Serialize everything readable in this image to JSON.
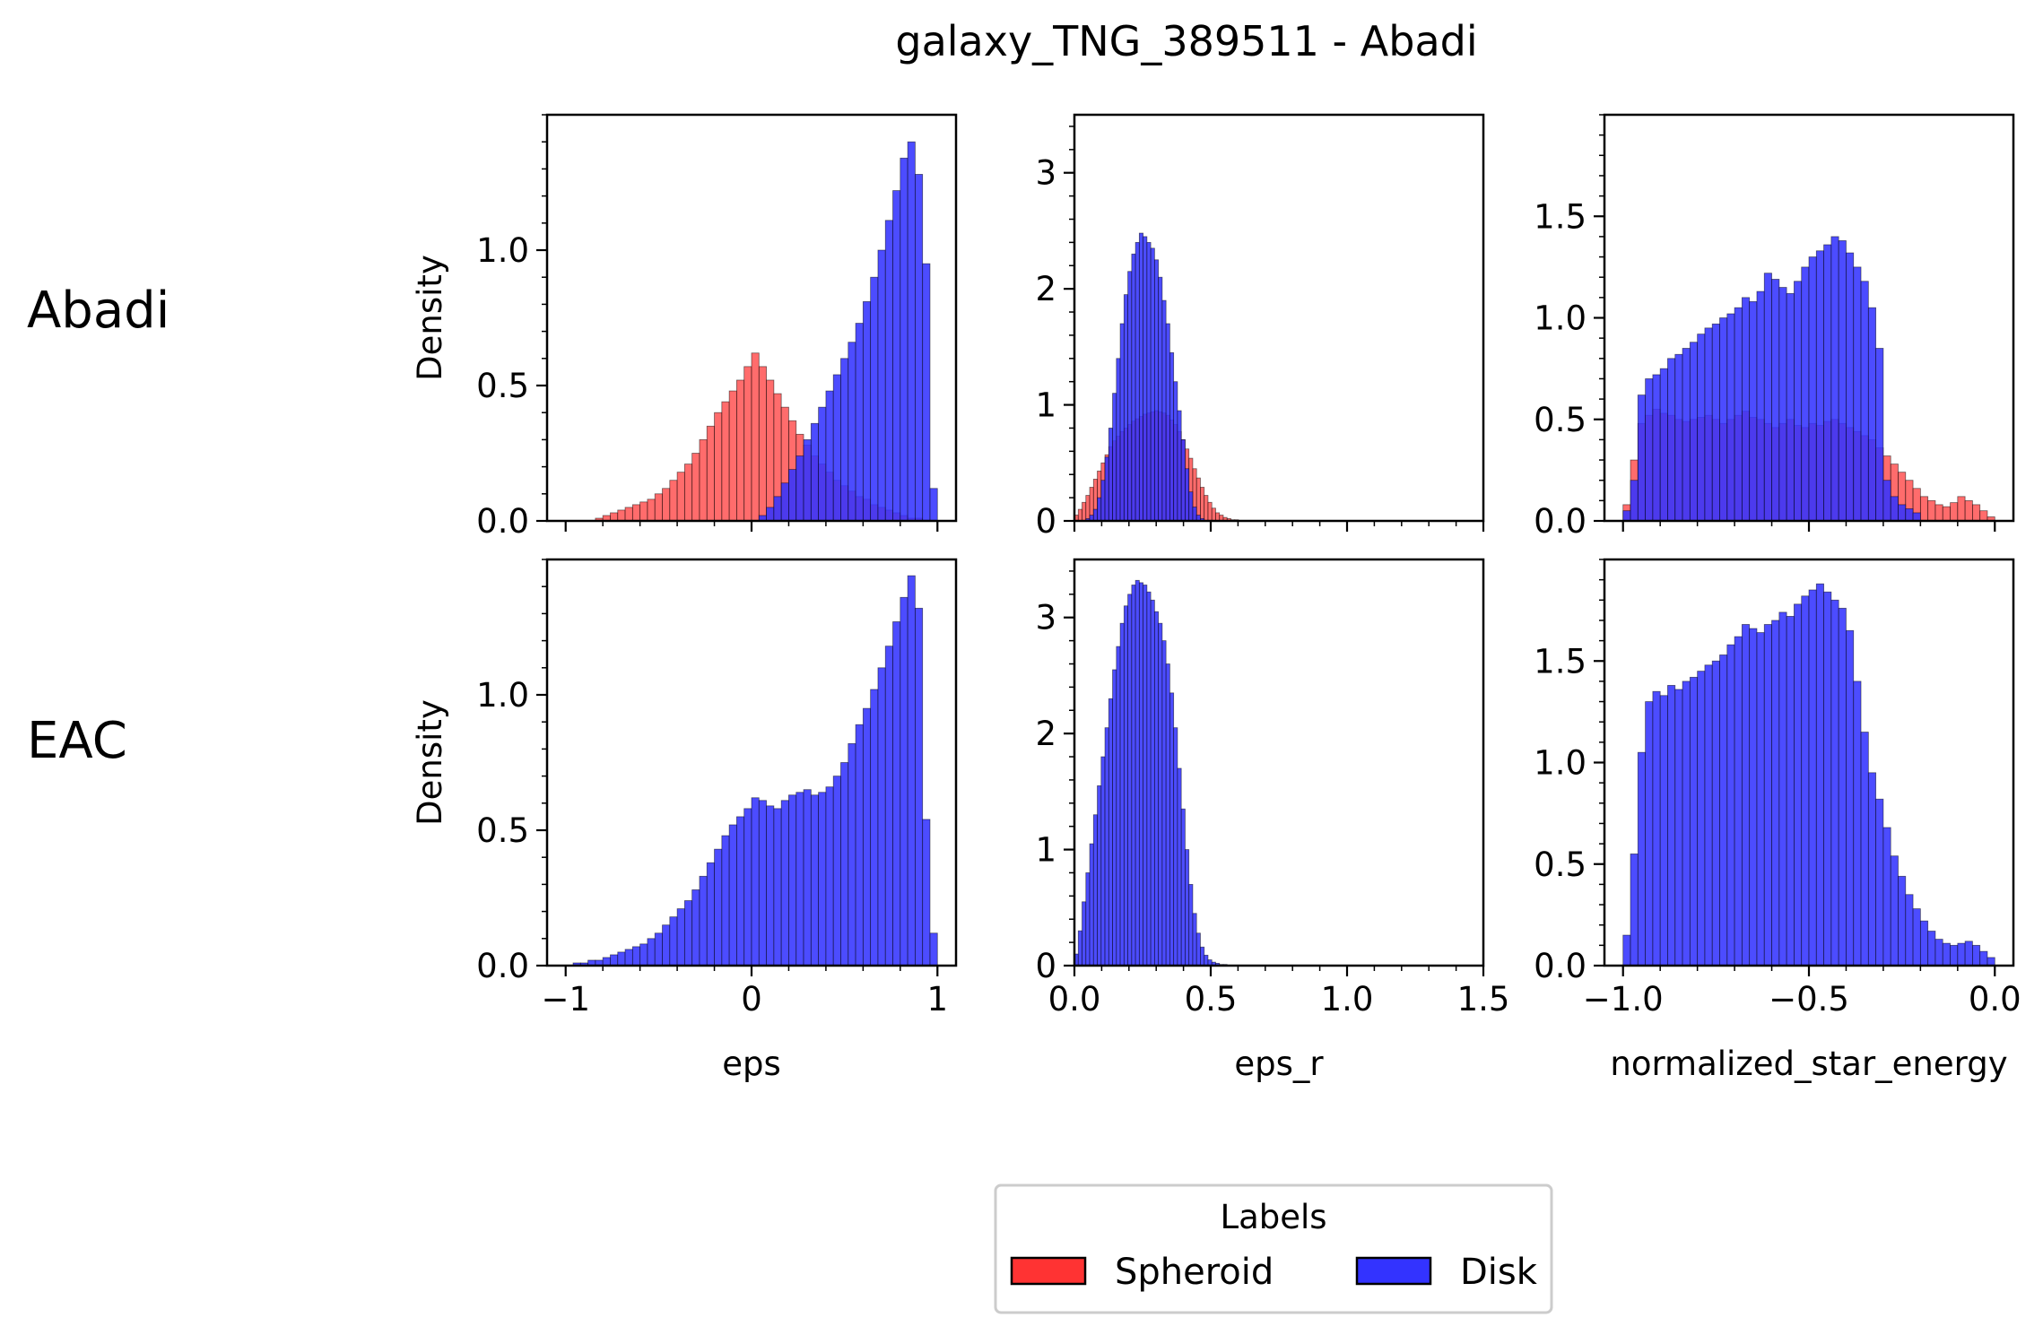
{
  "figure": {
    "title": "galaxy_TNG_389511 - Abadi",
    "row_labels": [
      "Abadi",
      "EAC"
    ],
    "legend": {
      "title": "Labels",
      "entries": [
        {
          "label": "Spheroid",
          "color": "#ff3333"
        },
        {
          "label": "Disk",
          "color": "#3333ff"
        }
      ],
      "placement": "bottom-center"
    }
  },
  "colors": {
    "spheroid": "#ff3333",
    "disk": "#3333ff",
    "overlap": "#a3102c",
    "axis": "#000000"
  },
  "chart_data": [
    {
      "id": "abadi-eps",
      "type": "bar",
      "row": 0,
      "col": 0,
      "xlabel": "",
      "ylabel": "Density",
      "xlim": [
        -1.1,
        1.1
      ],
      "ylim": [
        0,
        1.5
      ],
      "grid": false,
      "xticks": [
        -1,
        0,
        1
      ],
      "xtick_labels": [],
      "yticks": [
        0,
        0.5,
        1.0
      ],
      "ytick_labels": [
        "0.0",
        "0.5",
        "1.0"
      ],
      "bin_range": [
        -1.0,
        1.0
      ],
      "bins": 50,
      "series": [
        {
          "name": "Spheroid",
          "color": "#ff3333",
          "values": [
            0.0,
            0.0,
            0.0,
            0.0,
            0.01,
            0.02,
            0.03,
            0.04,
            0.05,
            0.06,
            0.07,
            0.08,
            0.1,
            0.12,
            0.15,
            0.18,
            0.21,
            0.25,
            0.3,
            0.35,
            0.4,
            0.44,
            0.48,
            0.52,
            0.57,
            0.62,
            0.57,
            0.52,
            0.47,
            0.42,
            0.37,
            0.32,
            0.28,
            0.24,
            0.21,
            0.18,
            0.15,
            0.13,
            0.11,
            0.09,
            0.08,
            0.06,
            0.05,
            0.04,
            0.03,
            0.02,
            0.01,
            0.01,
            0.0,
            0.0
          ]
        },
        {
          "name": "Disk",
          "color": "#3333ff",
          "values": [
            0.0,
            0.0,
            0.0,
            0.0,
            0.0,
            0.0,
            0.0,
            0.0,
            0.0,
            0.0,
            0.0,
            0.0,
            0.0,
            0.0,
            0.0,
            0.0,
            0.0,
            0.0,
            0.0,
            0.0,
            0.0,
            0.0,
            0.0,
            0.0,
            0.0,
            0.0,
            0.02,
            0.05,
            0.09,
            0.14,
            0.19,
            0.24,
            0.3,
            0.36,
            0.42,
            0.48,
            0.54,
            0.6,
            0.66,
            0.73,
            0.81,
            0.9,
            1.0,
            1.11,
            1.22,
            1.34,
            1.4,
            1.28,
            0.95,
            0.12
          ]
        }
      ]
    },
    {
      "id": "abadi-eps-r",
      "type": "bar",
      "row": 0,
      "col": 1,
      "xlabel": "",
      "ylabel": "",
      "xlim": [
        0,
        1.5
      ],
      "ylim": [
        0,
        3.5
      ],
      "grid": false,
      "xticks": [
        0,
        0.5,
        1.0,
        1.5
      ],
      "xtick_labels": [],
      "yticks": [
        0,
        1,
        2,
        3
      ],
      "ytick_labels": [
        "0",
        "1",
        "2",
        "3"
      ],
      "bin_range": [
        0,
        0.7
      ],
      "bins": 50,
      "series": [
        {
          "name": "Spheroid",
          "color": "#ff3333",
          "values": [
            0.05,
            0.1,
            0.16,
            0.22,
            0.29,
            0.36,
            0.43,
            0.5,
            0.57,
            0.64,
            0.69,
            0.73,
            0.77,
            0.8,
            0.83,
            0.86,
            0.88,
            0.9,
            0.92,
            0.93,
            0.94,
            0.95,
            0.94,
            0.93,
            0.91,
            0.87,
            0.83,
            0.77,
            0.7,
            0.62,
            0.54,
            0.45,
            0.37,
            0.29,
            0.22,
            0.16,
            0.11,
            0.07,
            0.05,
            0.03,
            0.02,
            0.01,
            0.01,
            0.0,
            0.0,
            0.0,
            0.0,
            0.0,
            0.0,
            0.0
          ]
        },
        {
          "name": "Disk",
          "color": "#3333ff",
          "values": [
            0.0,
            0.0,
            0.0,
            0.02,
            0.05,
            0.1,
            0.2,
            0.35,
            0.55,
            0.8,
            1.1,
            1.4,
            1.7,
            1.95,
            2.15,
            2.3,
            2.4,
            2.48,
            2.45,
            2.4,
            2.35,
            2.25,
            2.1,
            1.9,
            1.7,
            1.45,
            1.2,
            0.95,
            0.7,
            0.45,
            0.25,
            0.12,
            0.05,
            0.02,
            0.0,
            0.0,
            0.0,
            0.0,
            0.0,
            0.0,
            0.0,
            0.0,
            0.0,
            0.0,
            0.0,
            0.0,
            0.0,
            0.0,
            0.0,
            0.0
          ]
        }
      ]
    },
    {
      "id": "abadi-energy",
      "type": "bar",
      "row": 0,
      "col": 2,
      "xlabel": "",
      "ylabel": "",
      "xlim": [
        -1.05,
        0.05
      ],
      "ylim": [
        0,
        2.0
      ],
      "grid": false,
      "xticks": [
        -1.0,
        -0.5,
        0.0
      ],
      "xtick_labels": [],
      "yticks": [
        0,
        0.5,
        1.0,
        1.5
      ],
      "ytick_labels": [
        "0.0",
        "0.5",
        "1.0",
        "1.5"
      ],
      "bin_range": [
        -1.0,
        0.0
      ],
      "bins": 50,
      "series": [
        {
          "name": "Spheroid",
          "color": "#ff3333",
          "values": [
            0.08,
            0.3,
            0.48,
            0.52,
            0.55,
            0.53,
            0.52,
            0.5,
            0.49,
            0.5,
            0.51,
            0.52,
            0.5,
            0.48,
            0.5,
            0.52,
            0.54,
            0.51,
            0.5,
            0.48,
            0.46,
            0.48,
            0.5,
            0.47,
            0.46,
            0.48,
            0.47,
            0.49,
            0.5,
            0.48,
            0.46,
            0.44,
            0.42,
            0.4,
            0.36,
            0.32,
            0.28,
            0.24,
            0.2,
            0.16,
            0.12,
            0.1,
            0.08,
            0.07,
            0.09,
            0.12,
            0.1,
            0.08,
            0.05,
            0.02
          ]
        },
        {
          "name": "Disk",
          "color": "#3333ff",
          "values": [
            0.05,
            0.2,
            0.62,
            0.7,
            0.72,
            0.75,
            0.8,
            0.82,
            0.85,
            0.88,
            0.92,
            0.95,
            0.97,
            1.0,
            1.02,
            1.05,
            1.1,
            1.08,
            1.13,
            1.22,
            1.19,
            1.15,
            1.12,
            1.18,
            1.25,
            1.3,
            1.33,
            1.36,
            1.4,
            1.38,
            1.32,
            1.25,
            1.18,
            1.05,
            0.85,
            0.2,
            0.12,
            0.08,
            0.06,
            0.04,
            0.0,
            0.0,
            0.0,
            0.0,
            0.0,
            0.0,
            0.0,
            0.0,
            0.0,
            0.0
          ]
        }
      ]
    },
    {
      "id": "eac-eps",
      "type": "bar",
      "row": 1,
      "col": 0,
      "xlabel": "eps",
      "ylabel": "Density",
      "xlim": [
        -1.1,
        1.1
      ],
      "ylim": [
        0,
        1.5
      ],
      "grid": false,
      "xticks": [
        -1,
        0,
        1
      ],
      "xtick_labels": [
        "−1",
        "0",
        "1"
      ],
      "yticks": [
        0,
        0.5,
        1.0
      ],
      "ytick_labels": [
        "0.0",
        "0.5",
        "1.0"
      ],
      "bin_range": [
        -1.0,
        1.0
      ],
      "bins": 50,
      "series": [
        {
          "name": "Disk",
          "color": "#3333ff",
          "values": [
            0.0,
            0.01,
            0.01,
            0.02,
            0.02,
            0.03,
            0.04,
            0.05,
            0.06,
            0.07,
            0.08,
            0.1,
            0.12,
            0.15,
            0.18,
            0.21,
            0.24,
            0.28,
            0.33,
            0.38,
            0.43,
            0.48,
            0.52,
            0.55,
            0.58,
            0.62,
            0.61,
            0.59,
            0.58,
            0.61,
            0.63,
            0.64,
            0.65,
            0.63,
            0.64,
            0.66,
            0.7,
            0.75,
            0.82,
            0.89,
            0.95,
            1.02,
            1.1,
            1.18,
            1.27,
            1.36,
            1.44,
            1.32,
            0.54,
            0.12
          ]
        }
      ]
    },
    {
      "id": "eac-eps-r",
      "type": "bar",
      "row": 1,
      "col": 1,
      "xlabel": "eps_r",
      "ylabel": "",
      "xlim": [
        0,
        1.5
      ],
      "ylim": [
        0,
        3.5
      ],
      "grid": false,
      "xticks": [
        0,
        0.5,
        1.0,
        1.5
      ],
      "xtick_labels": [
        "0.0",
        "0.5",
        "1.0",
        "1.5"
      ],
      "yticks": [
        0,
        1,
        2,
        3
      ],
      "ytick_labels": [
        "0",
        "1",
        "2",
        "3"
      ],
      "bin_range": [
        0,
        0.7
      ],
      "bins": 50,
      "series": [
        {
          "name": "Disk",
          "color": "#3333ff",
          "values": [
            0.1,
            0.3,
            0.55,
            0.8,
            1.05,
            1.3,
            1.55,
            1.8,
            2.05,
            2.3,
            2.55,
            2.75,
            2.95,
            3.1,
            3.2,
            3.28,
            3.32,
            3.3,
            3.28,
            3.22,
            3.15,
            3.05,
            2.95,
            2.8,
            2.6,
            2.35,
            2.05,
            1.7,
            1.35,
            1.0,
            0.7,
            0.45,
            0.28,
            0.16,
            0.09,
            0.05,
            0.03,
            0.02,
            0.01,
            0.01,
            0.0,
            0.0,
            0.0,
            0.0,
            0.0,
            0.0,
            0.0,
            0.0,
            0.0,
            0.0
          ]
        }
      ]
    },
    {
      "id": "eac-energy",
      "type": "bar",
      "row": 1,
      "col": 2,
      "xlabel": "normalized_star_energy",
      "ylabel": "",
      "xlim": [
        -1.05,
        0.05
      ],
      "ylim": [
        0,
        2.0
      ],
      "grid": false,
      "xticks": [
        -1.0,
        -0.5,
        0.0
      ],
      "xtick_labels": [
        "−1.0",
        "−0.5",
        "0.0"
      ],
      "yticks": [
        0,
        0.5,
        1.0,
        1.5
      ],
      "ytick_labels": [
        "0.0",
        "0.5",
        "1.0",
        "1.5"
      ],
      "bin_range": [
        -1.0,
        0.0
      ],
      "bins": 50,
      "series": [
        {
          "name": "Disk",
          "color": "#3333ff",
          "values": [
            0.15,
            0.55,
            1.05,
            1.3,
            1.35,
            1.33,
            1.38,
            1.36,
            1.4,
            1.42,
            1.45,
            1.48,
            1.5,
            1.53,
            1.58,
            1.62,
            1.68,
            1.66,
            1.64,
            1.68,
            1.7,
            1.74,
            1.72,
            1.78,
            1.82,
            1.85,
            1.88,
            1.84,
            1.8,
            1.76,
            1.65,
            1.4,
            1.15,
            0.95,
            0.82,
            0.68,
            0.54,
            0.44,
            0.35,
            0.28,
            0.22,
            0.17,
            0.13,
            0.11,
            0.1,
            0.11,
            0.12,
            0.1,
            0.07,
            0.04
          ]
        }
      ]
    }
  ]
}
